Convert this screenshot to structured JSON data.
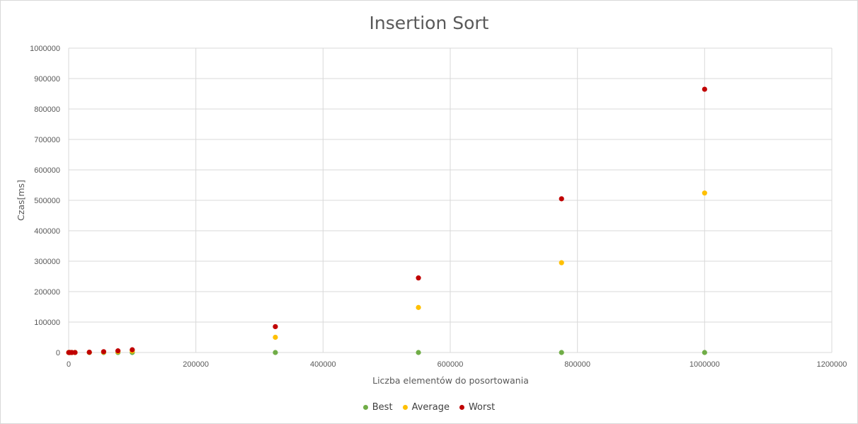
{
  "chart_data": {
    "type": "scatter",
    "title": "Insertion Sort",
    "xlabel": "Liczba elementów do posortowania",
    "ylabel": "Czas[ms]",
    "xlim": [
      0,
      1200000
    ],
    "ylim": [
      0,
      1000000
    ],
    "x_ticks": [
      "0",
      "200000",
      "400000",
      "600000",
      "800000",
      "1000000",
      "1200000"
    ],
    "y_ticks": [
      "0",
      "100000",
      "200000",
      "300000",
      "400000",
      "500000",
      "600000",
      "700000",
      "800000",
      "900000",
      "1000000"
    ],
    "grid": true,
    "legend_position": "bottom",
    "series": [
      {
        "name": "Best",
        "color": "#70ad47",
        "points": [
          [
            100,
            0
          ],
          [
            1000,
            0
          ],
          [
            2000,
            0
          ],
          [
            5000,
            0
          ],
          [
            10000,
            0
          ],
          [
            32500,
            0
          ],
          [
            55000,
            0
          ],
          [
            77500,
            0
          ],
          [
            100000,
            0
          ],
          [
            325000,
            0
          ],
          [
            550000,
            0
          ],
          [
            775000,
            0
          ],
          [
            1000000,
            0
          ]
        ]
      },
      {
        "name": "Average",
        "color": "#ffc000",
        "points": [
          [
            100,
            0
          ],
          [
            1000,
            0
          ],
          [
            2000,
            0
          ],
          [
            5000,
            0
          ],
          [
            10000,
            100
          ],
          [
            32500,
            550
          ],
          [
            55000,
            1500
          ],
          [
            77500,
            3000
          ],
          [
            100000,
            5000
          ],
          [
            325000,
            50000
          ],
          [
            550000,
            148000
          ],
          [
            775000,
            295000
          ],
          [
            1000000,
            524000
          ]
        ]
      },
      {
        "name": "Worst",
        "color": "#c00000",
        "points": [
          [
            100,
            0
          ],
          [
            1000,
            0
          ],
          [
            2000,
            0
          ],
          [
            5000,
            0
          ],
          [
            10000,
            100
          ],
          [
            32500,
            1000
          ],
          [
            55000,
            2800
          ],
          [
            77500,
            5500
          ],
          [
            100000,
            9000
          ],
          [
            325000,
            85000
          ],
          [
            550000,
            245000
          ],
          [
            775000,
            505000
          ],
          [
            1000000,
            865000
          ]
        ]
      }
    ]
  }
}
